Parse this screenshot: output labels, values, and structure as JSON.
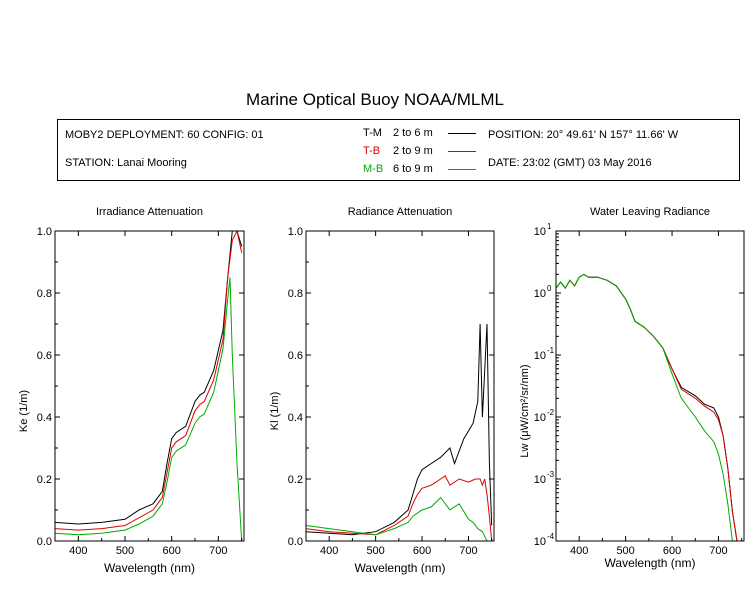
{
  "title": "Marine Optical Buoy NOAA/MLML",
  "info": {
    "deployment": "MOBY2 DEPLOYMENT: 60 CONFIG: 01",
    "station": "STATION: Lanai Mooring",
    "position": "POSITION: 20° 49.61' N   157° 11.66' W",
    "date": "DATE: 23:02 (GMT) 03 May 2016"
  },
  "legend": [
    {
      "code": "T-M",
      "range": "2 to 6  m",
      "color": "#000000"
    },
    {
      "code": "T-B",
      "range": "2 to 9  m",
      "color": "#dd0000"
    },
    {
      "code": "M-B",
      "range": "6 to 9  m",
      "color": "#00aa00"
    }
  ],
  "chart_data": [
    {
      "type": "line",
      "title": "Irradiance Attenuation",
      "xlabel": "Wavelength (nm)",
      "ylabel": "Ke  (1/m)",
      "xlim": [
        350,
        755
      ],
      "ylim": [
        0,
        1.0
      ],
      "xticks": [
        400,
        500,
        600,
        700
      ],
      "yticks": [
        0.0,
        0.2,
        0.4,
        0.6,
        0.8,
        1.0
      ],
      "ytick_labels": [
        "0.0",
        "0.2",
        "0.4",
        "0.6",
        "0.8",
        "1.0"
      ],
      "series": [
        {
          "name": "T-M",
          "color": "#000000",
          "x": [
            350,
            400,
            450,
            500,
            530,
            560,
            580,
            590,
            600,
            610,
            630,
            650,
            660,
            670,
            690,
            710,
            720,
            730,
            740,
            750
          ],
          "y": [
            0.06,
            0.055,
            0.06,
            0.07,
            0.1,
            0.12,
            0.16,
            0.25,
            0.33,
            0.35,
            0.37,
            0.45,
            0.47,
            0.48,
            0.55,
            0.68,
            0.85,
            1.0,
            1.0,
            0.95
          ]
        },
        {
          "name": "T-B",
          "color": "#dd0000",
          "x": [
            350,
            400,
            450,
            500,
            530,
            560,
            580,
            590,
            600,
            610,
            630,
            650,
            660,
            670,
            690,
            710,
            720,
            730,
            740,
            750
          ],
          "y": [
            0.04,
            0.035,
            0.04,
            0.05,
            0.075,
            0.1,
            0.14,
            0.22,
            0.3,
            0.32,
            0.34,
            0.42,
            0.44,
            0.45,
            0.52,
            0.65,
            0.85,
            0.97,
            1.0,
            0.93
          ]
        },
        {
          "name": "M-B",
          "color": "#00aa00",
          "x": [
            350,
            400,
            450,
            500,
            530,
            560,
            580,
            590,
            600,
            610,
            630,
            650,
            660,
            670,
            690,
            710,
            720,
            725,
            730,
            740,
            750
          ],
          "y": [
            0.025,
            0.02,
            0.025,
            0.035,
            0.055,
            0.08,
            0.12,
            0.19,
            0.27,
            0.29,
            0.31,
            0.38,
            0.4,
            0.41,
            0.48,
            0.62,
            0.78,
            0.85,
            0.6,
            0.25,
            0.0
          ]
        }
      ]
    },
    {
      "type": "line",
      "title": "Radiance Attenuation",
      "xlabel": "Wavelength (nm)",
      "ylabel": "Kl  (1/m)",
      "xlim": [
        350,
        755
      ],
      "ylim": [
        0,
        1.0
      ],
      "xticks": [
        400,
        500,
        600,
        700
      ],
      "yticks": [
        0.0,
        0.2,
        0.4,
        0.6,
        0.8,
        1.0
      ],
      "ytick_labels": [
        "0.0",
        "0.2",
        "0.4",
        "0.6",
        "0.8",
        "1.0"
      ],
      "series": [
        {
          "name": "T-M",
          "color": "#000000",
          "x": [
            350,
            400,
            450,
            500,
            540,
            570,
            580,
            590,
            600,
            610,
            620,
            640,
            660,
            670,
            690,
            710,
            720,
            725,
            730,
            735,
            740,
            745,
            750
          ],
          "y": [
            0.03,
            0.025,
            0.02,
            0.03,
            0.06,
            0.1,
            0.15,
            0.2,
            0.23,
            0.24,
            0.25,
            0.27,
            0.3,
            0.25,
            0.33,
            0.38,
            0.45,
            0.7,
            0.4,
            0.55,
            0.7,
            0.25,
            0.05
          ]
        },
        {
          "name": "T-B",
          "color": "#dd0000",
          "x": [
            350,
            400,
            450,
            500,
            540,
            570,
            580,
            590,
            600,
            620,
            640,
            650,
            660,
            680,
            700,
            715,
            725,
            730,
            735,
            740,
            745,
            750
          ],
          "y": [
            0.04,
            0.03,
            0.025,
            0.02,
            0.05,
            0.08,
            0.12,
            0.15,
            0.17,
            0.18,
            0.2,
            0.21,
            0.18,
            0.2,
            0.19,
            0.2,
            0.2,
            0.18,
            0.2,
            0.15,
            0.08,
            0.0
          ]
        },
        {
          "name": "M-B",
          "color": "#00aa00",
          "x": [
            350,
            400,
            450,
            500,
            540,
            570,
            580,
            590,
            600,
            620,
            640,
            650,
            660,
            680,
            700,
            710,
            720,
            730,
            740,
            750
          ],
          "y": [
            0.05,
            0.04,
            0.03,
            0.02,
            0.04,
            0.06,
            0.08,
            0.09,
            0.1,
            0.11,
            0.14,
            0.12,
            0.1,
            0.12,
            0.07,
            0.06,
            0.04,
            0.03,
            0.0,
            0.0
          ]
        }
      ]
    },
    {
      "type": "line",
      "title": "Water Leaving Radiance",
      "xlabel": "Wavelength (nm)",
      "ylabel": "Lw  (μW/cm²/sr/nm)",
      "yscale": "log",
      "xlim": [
        350,
        755
      ],
      "ylim": [
        0.0001,
        10
      ],
      "xticks": [
        400,
        500,
        600,
        700
      ],
      "yticks": [
        0.0001,
        0.001,
        0.01,
        0.1,
        1,
        10
      ],
      "ytick_bases": [
        "10",
        "10",
        "10",
        "10",
        "10",
        "10"
      ],
      "ytick_exponents": [
        "-4",
        "-3",
        "-2",
        "-1",
        "0",
        "1"
      ],
      "series": [
        {
          "name": "T-M",
          "color": "#000000",
          "x": [
            350,
            360,
            370,
            380,
            390,
            400,
            410,
            420,
            440,
            460,
            480,
            500,
            510,
            520,
            540,
            560,
            580,
            600,
            620,
            650,
            670,
            690,
            700,
            710,
            720,
            730,
            740
          ],
          "y": [
            1.2,
            1.5,
            1.2,
            1.6,
            1.3,
            1.8,
            2.0,
            1.8,
            1.8,
            1.6,
            1.3,
            0.8,
            0.55,
            0.35,
            0.28,
            0.2,
            0.13,
            0.06,
            0.03,
            0.022,
            0.016,
            0.014,
            0.01,
            0.005,
            0.0015,
            0.0003,
            0.0001
          ]
        },
        {
          "name": "T-B",
          "color": "#dd0000",
          "x": [
            350,
            360,
            370,
            380,
            390,
            400,
            410,
            420,
            440,
            460,
            480,
            500,
            510,
            520,
            540,
            560,
            580,
            600,
            620,
            650,
            670,
            690,
            700,
            710,
            720,
            730,
            740
          ],
          "y": [
            1.2,
            1.5,
            1.2,
            1.6,
            1.3,
            1.8,
            2.0,
            1.8,
            1.8,
            1.6,
            1.3,
            0.8,
            0.55,
            0.35,
            0.28,
            0.2,
            0.13,
            0.06,
            0.028,
            0.02,
            0.015,
            0.012,
            0.009,
            0.005,
            0.0015,
            0.0003,
            0.0001
          ]
        },
        {
          "name": "M-B",
          "color": "#00aa00",
          "x": [
            350,
            360,
            370,
            380,
            390,
            400,
            410,
            420,
            440,
            460,
            480,
            500,
            510,
            520,
            540,
            560,
            580,
            600,
            620,
            650,
            670,
            690,
            700,
            710,
            720,
            730
          ],
          "y": [
            1.2,
            1.5,
            1.2,
            1.6,
            1.3,
            1.8,
            2.0,
            1.8,
            1.8,
            1.6,
            1.3,
            0.8,
            0.55,
            0.35,
            0.28,
            0.2,
            0.13,
            0.05,
            0.02,
            0.01,
            0.006,
            0.004,
            0.0025,
            0.0012,
            0.0004,
            0.0001
          ]
        }
      ]
    }
  ]
}
